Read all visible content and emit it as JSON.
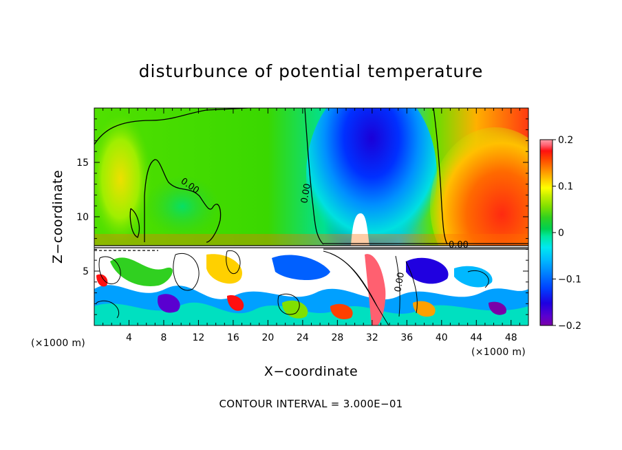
{
  "chart_data": {
    "type": "heatmap",
    "title": "disturbunce of potential temperature",
    "xlabel": "X−coordinate",
    "ylabel": "Z−coordinate",
    "x_unit": "(×1000 m)",
    "y_unit": "(×1000 m)",
    "xlim": [
      0,
      50
    ],
    "ylim": [
      0,
      20
    ],
    "x_ticks": [
      4,
      8,
      12,
      16,
      20,
      24,
      28,
      32,
      36,
      40,
      44,
      48
    ],
    "y_ticks": [
      5,
      10,
      15
    ],
    "colorbar": {
      "range": [
        -0.2,
        0.2
      ],
      "ticks": [
        "0.2",
        "0.1",
        "0",
        "−0.1",
        "−0.2"
      ],
      "tick_values": [
        0.2,
        0.1,
        0,
        -0.1,
        -0.2
      ],
      "colors": [
        "#7a00a8",
        "#5a00d0",
        "#1e00e0",
        "#0040ff",
        "#0080ff",
        "#00b8ff",
        "#00e8f0",
        "#00e8a0",
        "#00d050",
        "#30d020",
        "#80e000",
        "#c8f000",
        "#ffff00",
        "#ffd000",
        "#ffa000",
        "#ff7000",
        "#ff4000",
        "#ff1010",
        "#ff6070",
        "#ffa0a8"
      ]
    },
    "contour_labels": [
      "0.00",
      "0.00",
      "0.00",
      "0.00"
    ],
    "contour_interval_text": "CONTOUR INTERVAL =  3.000E−01"
  }
}
